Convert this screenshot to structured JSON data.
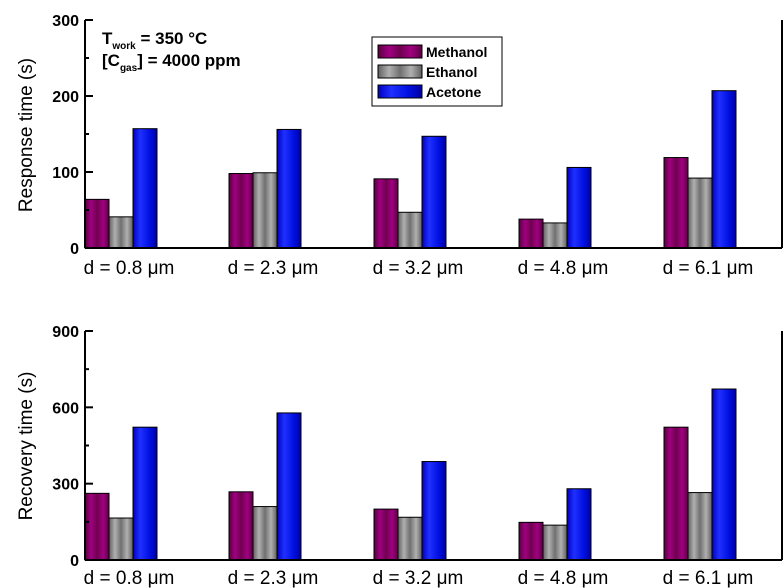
{
  "chart_data": [
    {
      "type": "bar",
      "ylabel": "Response time (s)",
      "ylim": [
        0,
        300
      ],
      "yticks": [
        0,
        100,
        200,
        300
      ],
      "categories": [
        "d = 0.8 μm",
        "d = 2.3 μm",
        "d = 3.2 μm",
        "d = 4.8 μm",
        "d = 6.1 μm"
      ],
      "series": [
        {
          "name": "Methanol",
          "values": [
            64,
            98,
            91,
            38,
            119
          ]
        },
        {
          "name": "Ethanol",
          "values": [
            41,
            99,
            47,
            33,
            92
          ]
        },
        {
          "name": "Acetone",
          "values": [
            157,
            156,
            147,
            106,
            207
          ]
        }
      ],
      "annotation": {
        "line1_main": "T",
        "line1_sub": "work",
        "line1_rest": " = 350 °C",
        "line2_open": "[C",
        "line2_sub": "gas",
        "line2_rest": "] = 4000 ppm"
      },
      "legend": {
        "placement": "top-center"
      }
    },
    {
      "type": "bar",
      "ylabel": "Recovery time (s)",
      "ylim": [
        0,
        900
      ],
      "yticks": [
        0,
        300,
        600,
        900
      ],
      "categories": [
        "d = 0.8 μm",
        "d = 2.3 μm",
        "d = 3.2 μm",
        "d = 4.8 μm",
        "d = 6.1 μm"
      ],
      "series": [
        {
          "name": "Methanol",
          "values": [
            262,
            268,
            200,
            148,
            522
          ]
        },
        {
          "name": "Ethanol",
          "values": [
            165,
            210,
            168,
            137,
            265
          ]
        },
        {
          "name": "Acetone",
          "values": [
            522,
            578,
            387,
            280,
            672
          ]
        }
      ]
    }
  ],
  "colors": {
    "Methanol": "#800060",
    "Ethanol": "#808080",
    "Acetone": "#0000ff"
  }
}
